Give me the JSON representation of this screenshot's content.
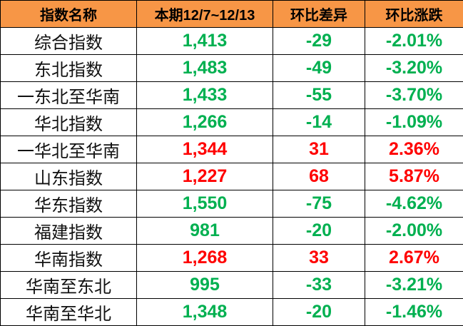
{
  "colors": {
    "header_bg": "#F79646",
    "up": "#FF0000",
    "down": "#00B050"
  },
  "headers": [
    "指数名称",
    "本期12/7~12/13",
    "环比差异",
    "环比涨跌"
  ],
  "rows": [
    {
      "name": "综合指数",
      "value": "1,413",
      "diff": "-29",
      "pct": "-2.01%",
      "trend": "down"
    },
    {
      "name": "东北指数",
      "value": "1,483",
      "diff": "-49",
      "pct": "-3.20%",
      "trend": "down"
    },
    {
      "name": "一东北至华南",
      "value": "1,433",
      "diff": "-55",
      "pct": "-3.70%",
      "trend": "down"
    },
    {
      "name": "华北指数",
      "value": "1,266",
      "diff": "-14",
      "pct": "-1.09%",
      "trend": "down"
    },
    {
      "name": "一华北至华南",
      "value": "1,344",
      "diff": "31",
      "pct": "2.36%",
      "trend": "up"
    },
    {
      "name": "山东指数",
      "value": "1,227",
      "diff": "68",
      "pct": "5.87%",
      "trend": "up"
    },
    {
      "name": "华东指数",
      "value": "1,550",
      "diff": "-75",
      "pct": "-4.62%",
      "trend": "down"
    },
    {
      "name": "福建指数",
      "value": "981",
      "diff": "-20",
      "pct": "-2.00%",
      "trend": "down"
    },
    {
      "name": "华南指数",
      "value": "1,268",
      "diff": "33",
      "pct": "2.67%",
      "trend": "up"
    },
    {
      "name": "华南至东北",
      "value": "995",
      "diff": "-33",
      "pct": "-3.21%",
      "trend": "down"
    },
    {
      "name": "华南至华北",
      "value": "1,348",
      "diff": "-20",
      "pct": "-1.46%",
      "trend": "down"
    }
  ]
}
